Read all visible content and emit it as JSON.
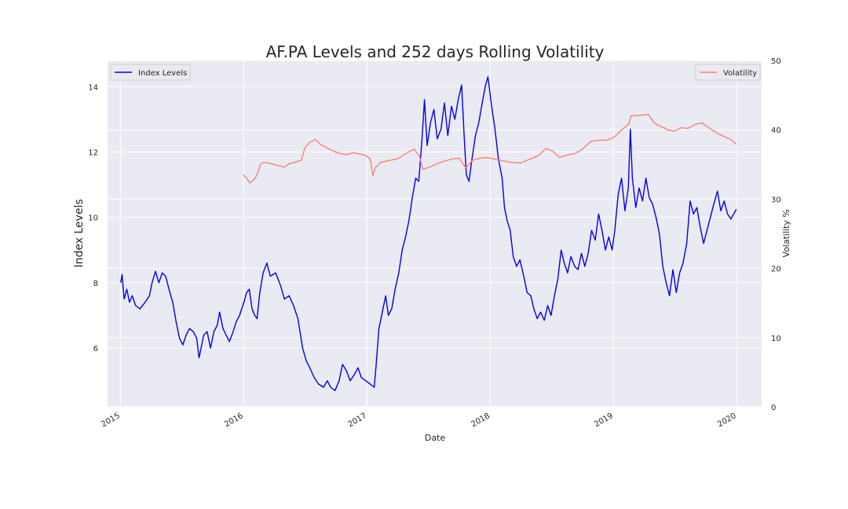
{
  "chart_data": {
    "type": "line",
    "title": "AF.PA Levels and 252 days Rolling Volatility",
    "xlabel": "Date",
    "ylabel_left": "Index Levels",
    "ylabel_right": "Volatility %",
    "x_ticks": [
      "2015",
      "2016",
      "2017",
      "2018",
      "2019",
      "2020"
    ],
    "y_left_ticks": [
      6,
      8,
      10,
      12,
      14
    ],
    "y_right_ticks": [
      0,
      10,
      20,
      30,
      40,
      50
    ],
    "xlim": [
      "2014-11-24",
      "2020-03-15"
    ],
    "ylim_left": [
      4.2,
      14.8
    ],
    "ylim_right": [
      0,
      50
    ],
    "grid": true,
    "legend_left": {
      "placement": "upper-left",
      "label": "Index Levels"
    },
    "legend_right": {
      "placement": "upper-right",
      "label": "Volatility"
    },
    "series": [
      {
        "name": "Index Levels",
        "axis": "left",
        "color": "#0000ee",
        "points": [
          [
            "2015-01-02",
            8.0
          ],
          [
            "2015-01-06",
            8.25
          ],
          [
            "2015-01-12",
            7.5
          ],
          [
            "2015-01-20",
            7.8
          ],
          [
            "2015-01-28",
            7.4
          ],
          [
            "2015-02-05",
            7.6
          ],
          [
            "2015-02-15",
            7.3
          ],
          [
            "2015-02-28",
            7.2
          ],
          [
            "2015-03-15",
            7.4
          ],
          [
            "2015-03-28",
            7.6
          ],
          [
            "2015-04-05",
            8.0
          ],
          [
            "2015-04-15",
            8.35
          ],
          [
            "2015-04-25",
            8.0
          ],
          [
            "2015-05-05",
            8.3
          ],
          [
            "2015-05-15",
            8.2
          ],
          [
            "2015-05-25",
            7.8
          ],
          [
            "2015-06-05",
            7.4
          ],
          [
            "2015-06-15",
            6.8
          ],
          [
            "2015-06-25",
            6.3
          ],
          [
            "2015-07-05",
            6.1
          ],
          [
            "2015-07-15",
            6.4
          ],
          [
            "2015-07-25",
            6.6
          ],
          [
            "2015-08-05",
            6.5
          ],
          [
            "2015-08-15",
            6.3
          ],
          [
            "2015-08-22",
            5.7
          ],
          [
            "2015-09-05",
            6.4
          ],
          [
            "2015-09-15",
            6.5
          ],
          [
            "2015-09-25",
            6.0
          ],
          [
            "2015-10-05",
            6.5
          ],
          [
            "2015-10-15",
            6.7
          ],
          [
            "2015-10-22",
            7.1
          ],
          [
            "2015-11-01",
            6.6
          ],
          [
            "2015-11-10",
            6.4
          ],
          [
            "2015-11-20",
            6.2
          ],
          [
            "2015-12-01",
            6.5
          ],
          [
            "2015-12-10",
            6.8
          ],
          [
            "2015-12-20",
            7.0
          ],
          [
            "2016-01-02",
            7.4
          ],
          [
            "2016-01-10",
            7.7
          ],
          [
            "2016-01-18",
            7.8
          ],
          [
            "2016-01-26",
            7.2
          ],
          [
            "2016-02-03",
            7.0
          ],
          [
            "2016-02-10",
            6.9
          ],
          [
            "2016-02-18",
            7.7
          ],
          [
            "2016-02-28",
            8.3
          ],
          [
            "2016-03-10",
            8.6
          ],
          [
            "2016-03-20",
            8.2
          ],
          [
            "2016-04-05",
            8.3
          ],
          [
            "2016-04-20",
            7.9
          ],
          [
            "2016-05-01",
            7.5
          ],
          [
            "2016-05-15",
            7.6
          ],
          [
            "2016-05-28",
            7.3
          ],
          [
            "2016-06-10",
            6.9
          ],
          [
            "2016-06-24",
            6.0
          ],
          [
            "2016-07-05",
            5.6
          ],
          [
            "2016-07-15",
            5.4
          ],
          [
            "2016-07-28",
            5.1
          ],
          [
            "2016-08-10",
            4.9
          ],
          [
            "2016-08-25",
            4.8
          ],
          [
            "2016-09-05",
            5.0
          ],
          [
            "2016-09-15",
            4.8
          ],
          [
            "2016-09-28",
            4.7
          ],
          [
            "2016-10-10",
            5.0
          ],
          [
            "2016-10-20",
            5.5
          ],
          [
            "2016-11-01",
            5.3
          ],
          [
            "2016-11-12",
            5.0
          ],
          [
            "2016-11-25",
            5.2
          ],
          [
            "2016-12-05",
            5.4
          ],
          [
            "2016-12-15",
            5.1
          ],
          [
            "2016-12-28",
            5.0
          ],
          [
            "2017-01-10",
            4.9
          ],
          [
            "2017-01-22",
            4.8
          ],
          [
            "2017-01-28",
            5.5
          ],
          [
            "2017-02-05",
            6.6
          ],
          [
            "2017-02-15",
            7.1
          ],
          [
            "2017-02-25",
            7.6
          ],
          [
            "2017-03-05",
            7.0
          ],
          [
            "2017-03-15",
            7.2
          ],
          [
            "2017-03-25",
            7.8
          ],
          [
            "2017-04-05",
            8.3
          ],
          [
            "2017-04-15",
            9.0
          ],
          [
            "2017-04-25",
            9.4
          ],
          [
            "2017-05-05",
            9.9
          ],
          [
            "2017-05-15",
            10.6
          ],
          [
            "2017-05-25",
            11.2
          ],
          [
            "2017-06-03",
            11.1
          ],
          [
            "2017-06-12",
            12.3
          ],
          [
            "2017-06-20",
            13.6
          ],
          [
            "2017-06-28",
            12.2
          ],
          [
            "2017-07-08",
            12.9
          ],
          [
            "2017-07-18",
            13.3
          ],
          [
            "2017-07-28",
            12.4
          ],
          [
            "2017-08-08",
            12.7
          ],
          [
            "2017-08-18",
            13.5
          ],
          [
            "2017-08-28",
            12.5
          ],
          [
            "2017-09-08",
            13.4
          ],
          [
            "2017-09-18",
            13.0
          ],
          [
            "2017-09-28",
            13.6
          ],
          [
            "2017-10-08",
            14.05
          ],
          [
            "2017-10-15",
            12.6
          ],
          [
            "2017-10-22",
            11.3
          ],
          [
            "2017-10-30",
            11.1
          ],
          [
            "2017-11-08",
            11.8
          ],
          [
            "2017-11-18",
            12.5
          ],
          [
            "2017-11-28",
            12.9
          ],
          [
            "2017-12-08",
            13.5
          ],
          [
            "2017-12-18",
            14.05
          ],
          [
            "2017-12-25",
            14.3
          ],
          [
            "2018-01-05",
            13.4
          ],
          [
            "2018-01-15",
            12.7
          ],
          [
            "2018-01-25",
            11.8
          ],
          [
            "2018-02-05",
            11.2
          ],
          [
            "2018-02-12",
            10.3
          ],
          [
            "2018-02-20",
            9.9
          ],
          [
            "2018-03-01",
            9.6
          ],
          [
            "2018-03-10",
            8.8
          ],
          [
            "2018-03-20",
            8.5
          ],
          [
            "2018-03-30",
            8.7
          ],
          [
            "2018-04-10",
            8.2
          ],
          [
            "2018-04-20",
            7.7
          ],
          [
            "2018-05-01",
            7.6
          ],
          [
            "2018-05-10",
            7.2
          ],
          [
            "2018-05-20",
            6.9
          ],
          [
            "2018-05-30",
            7.1
          ],
          [
            "2018-06-10",
            6.85
          ],
          [
            "2018-06-20",
            7.3
          ],
          [
            "2018-06-30",
            7.0
          ],
          [
            "2018-07-10",
            7.6
          ],
          [
            "2018-07-20",
            8.1
          ],
          [
            "2018-07-30",
            9.0
          ],
          [
            "2018-08-08",
            8.6
          ],
          [
            "2018-08-18",
            8.3
          ],
          [
            "2018-08-28",
            8.8
          ],
          [
            "2018-09-08",
            8.5
          ],
          [
            "2018-09-18",
            8.4
          ],
          [
            "2018-09-28",
            8.9
          ],
          [
            "2018-10-08",
            8.5
          ],
          [
            "2018-10-18",
            8.9
          ],
          [
            "2018-10-28",
            9.6
          ],
          [
            "2018-11-08",
            9.3
          ],
          [
            "2018-11-18",
            10.1
          ],
          [
            "2018-11-28",
            9.6
          ],
          [
            "2018-12-08",
            9.0
          ],
          [
            "2018-12-18",
            9.4
          ],
          [
            "2018-12-28",
            9.0
          ],
          [
            "2019-01-05",
            9.6
          ],
          [
            "2019-01-15",
            10.7
          ],
          [
            "2019-01-25",
            11.2
          ],
          [
            "2019-02-04",
            10.2
          ],
          [
            "2019-02-14",
            10.9
          ],
          [
            "2019-02-20",
            12.7
          ],
          [
            "2019-02-26",
            11.2
          ],
          [
            "2019-03-08",
            10.3
          ],
          [
            "2019-03-18",
            10.9
          ],
          [
            "2019-03-28",
            10.5
          ],
          [
            "2019-04-07",
            11.2
          ],
          [
            "2019-04-17",
            10.6
          ],
          [
            "2019-04-27",
            10.4
          ],
          [
            "2019-05-07",
            10.0
          ],
          [
            "2019-05-17",
            9.5
          ],
          [
            "2019-05-27",
            8.5
          ],
          [
            "2019-06-06",
            8.0
          ],
          [
            "2019-06-16",
            7.6
          ],
          [
            "2019-06-26",
            8.4
          ],
          [
            "2019-07-06",
            7.7
          ],
          [
            "2019-07-16",
            8.3
          ],
          [
            "2019-07-26",
            8.6
          ],
          [
            "2019-08-06",
            9.2
          ],
          [
            "2019-08-16",
            10.5
          ],
          [
            "2019-08-26",
            10.1
          ],
          [
            "2019-09-05",
            10.3
          ],
          [
            "2019-09-15",
            9.7
          ],
          [
            "2019-09-25",
            9.2
          ],
          [
            "2019-10-05",
            9.6
          ],
          [
            "2019-10-15",
            10.0
          ],
          [
            "2019-10-25",
            10.4
          ],
          [
            "2019-11-05",
            10.8
          ],
          [
            "2019-11-15",
            10.2
          ],
          [
            "2019-11-25",
            10.5
          ],
          [
            "2019-12-05",
            10.1
          ],
          [
            "2019-12-15",
            9.95
          ],
          [
            "2019-12-31",
            10.25
          ]
        ]
      },
      {
        "name": "Volatility",
        "axis": "right",
        "color": "#fa8072",
        "points": [
          [
            "2015-12-31",
            33.5
          ],
          [
            "2016-01-10",
            33.0
          ],
          [
            "2016-01-20",
            32.3
          ],
          [
            "2016-02-01",
            32.8
          ],
          [
            "2016-02-10",
            33.5
          ],
          [
            "2016-02-20",
            35.0
          ],
          [
            "2016-03-01",
            35.3
          ],
          [
            "2016-03-15",
            35.2
          ],
          [
            "2016-03-30",
            35.0
          ],
          [
            "2016-04-15",
            34.8
          ],
          [
            "2016-05-01",
            34.6
          ],
          [
            "2016-05-15",
            35.1
          ],
          [
            "2016-06-01",
            35.3
          ],
          [
            "2016-06-20",
            35.6
          ],
          [
            "2016-07-01",
            37.4
          ],
          [
            "2016-07-15",
            38.2
          ],
          [
            "2016-08-01",
            38.6
          ],
          [
            "2016-08-15",
            37.9
          ],
          [
            "2016-09-01",
            37.5
          ],
          [
            "2016-09-20",
            37.0
          ],
          [
            "2016-10-10",
            36.6
          ],
          [
            "2016-11-01",
            36.4
          ],
          [
            "2016-11-20",
            36.7
          ],
          [
            "2016-12-10",
            36.5
          ],
          [
            "2016-12-28",
            36.3
          ],
          [
            "2017-01-10",
            35.8
          ],
          [
            "2017-01-18",
            33.4
          ],
          [
            "2017-01-25",
            34.5
          ],
          [
            "2017-02-10",
            35.3
          ],
          [
            "2017-03-01",
            35.5
          ],
          [
            "2017-04-01",
            35.8
          ],
          [
            "2017-05-01",
            36.7
          ],
          [
            "2017-05-20",
            37.2
          ],
          [
            "2017-06-05",
            36.2
          ],
          [
            "2017-06-15",
            34.3
          ],
          [
            "2017-07-05",
            34.6
          ],
          [
            "2017-08-01",
            35.2
          ],
          [
            "2017-08-20",
            35.5
          ],
          [
            "2017-09-10",
            35.8
          ],
          [
            "2017-10-01",
            35.9
          ],
          [
            "2017-10-20",
            34.5
          ],
          [
            "2017-11-10",
            35.6
          ],
          [
            "2017-12-01",
            35.9
          ],
          [
            "2017-12-20",
            36.0
          ],
          [
            "2018-01-10",
            35.8
          ],
          [
            "2018-02-01",
            35.6
          ],
          [
            "2018-03-01",
            35.3
          ],
          [
            "2018-04-01",
            35.2
          ],
          [
            "2018-05-01",
            35.8
          ],
          [
            "2018-05-25",
            36.3
          ],
          [
            "2018-06-15",
            37.3
          ],
          [
            "2018-07-05",
            36.9
          ],
          [
            "2018-07-25",
            36.0
          ],
          [
            "2018-08-15",
            36.3
          ],
          [
            "2018-09-10",
            36.6
          ],
          [
            "2018-10-01",
            37.2
          ],
          [
            "2018-10-25",
            38.3
          ],
          [
            "2018-11-20",
            38.5
          ],
          [
            "2018-12-15",
            38.5
          ],
          [
            "2019-01-05",
            39.0
          ],
          [
            "2019-01-25",
            40.0
          ],
          [
            "2019-02-15",
            40.8
          ],
          [
            "2019-02-22",
            42.0
          ],
          [
            "2019-03-20",
            42.1
          ],
          [
            "2019-04-15",
            42.2
          ],
          [
            "2019-05-01",
            41.0
          ],
          [
            "2019-05-20",
            40.5
          ],
          [
            "2019-06-10",
            40.0
          ],
          [
            "2019-07-01",
            39.8
          ],
          [
            "2019-07-20",
            40.3
          ],
          [
            "2019-08-10",
            40.2
          ],
          [
            "2019-09-01",
            40.8
          ],
          [
            "2019-09-20",
            41.0
          ],
          [
            "2019-10-10",
            40.3
          ],
          [
            "2019-11-01",
            39.6
          ],
          [
            "2019-11-25",
            39.0
          ],
          [
            "2019-12-15",
            38.6
          ],
          [
            "2019-12-31",
            37.9
          ]
        ]
      }
    ]
  }
}
